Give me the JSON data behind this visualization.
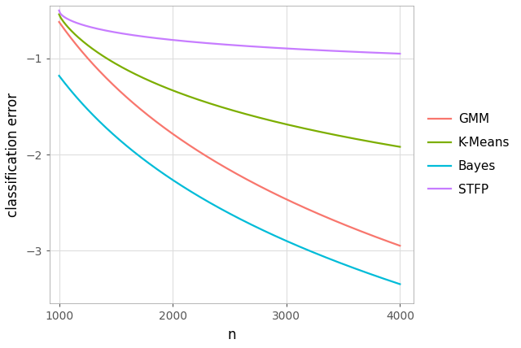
{
  "GMM_color": "#F8766D",
  "KMeans_color": "#7CAE00",
  "Bayes_color": "#00BCD8",
  "STFP_color": "#C77CFF",
  "xlabel": "n",
  "ylabel": "classification error",
  "xlim": [
    920,
    4120
  ],
  "ylim": [
    -3.55,
    -0.45
  ],
  "xticks": [
    1000,
    2000,
    3000,
    4000
  ],
  "yticks": [
    -3,
    -2,
    -1
  ],
  "bg_color": "#FFFFFF",
  "grid_color": "#DDDDDD",
  "line_width": 1.6,
  "legend_labels": [
    "GMM",
    "K-Means",
    "Bayes",
    "STFP"
  ],
  "GMM_params": [
    -0.62,
    -1.1,
    1000
  ],
  "KMeans_params": [
    -0.54,
    -0.9,
    1000
  ],
  "Bayes_params": [
    -1.18,
    -1.3,
    1000
  ],
  "STFP_params": [
    -0.5,
    -0.3,
    1000
  ]
}
